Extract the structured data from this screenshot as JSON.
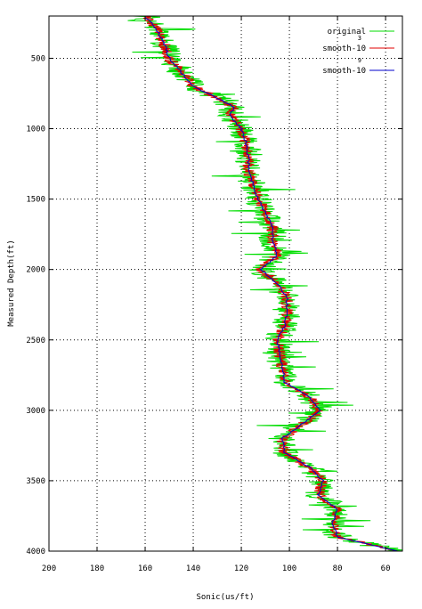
{
  "chart_data": {
    "type": "line",
    "title": "",
    "xlabel": "Sonic(us/ft)",
    "ylabel": "Measured Depth(ft)",
    "xlim": [
      200,
      53
    ],
    "ylim": [
      4000,
      200
    ],
    "x_reversed": true,
    "y_reversed": true,
    "grid": true,
    "legend_position": "top-right",
    "x_ticks": [
      "200",
      "180",
      "160",
      "140",
      "120",
      "100",
      "80",
      "60"
    ],
    "x_tick_values": [
      200,
      180,
      160,
      140,
      120,
      100,
      80,
      60
    ],
    "y_ticks": [
      "500",
      "1000",
      "1500",
      "2000",
      "2500",
      "3000",
      "3500",
      "4000"
    ],
    "y_tick_values": [
      500,
      1000,
      1500,
      2000,
      2500,
      3000,
      3500,
      4000
    ],
    "profile": {
      "depth": [
        200,
        300,
        400,
        500,
        600,
        700,
        800,
        850,
        900,
        1000,
        1100,
        1200,
        1300,
        1400,
        1500,
        1600,
        1700,
        1800,
        1900,
        2000,
        2100,
        2200,
        2300,
        2400,
        2500,
        2600,
        2700,
        2800,
        2900,
        3000,
        3100,
        3200,
        3300,
        3400,
        3500,
        3600,
        3700,
        3800,
        3900,
        4000
      ],
      "sonic": [
        160,
        155,
        152,
        150,
        145,
        140,
        128,
        123,
        125,
        120,
        118,
        117,
        117,
        115,
        113,
        110,
        107,
        107,
        105,
        112,
        105,
        101,
        101,
        102,
        105,
        104,
        103,
        102,
        92,
        87,
        95,
        103,
        102,
        92,
        86,
        88,
        80,
        82,
        80,
        55
      ]
    },
    "series": [
      {
        "name": "original",
        "color": "#00dd00",
        "noise": 6
      },
      {
        "name": "smooth-10",
        "superscript": "3",
        "color": "#e00000",
        "noise": 2.5
      },
      {
        "name": "smooth-10",
        "superscript": "9",
        "color": "#0000cc",
        "noise": 0.5
      }
    ]
  }
}
